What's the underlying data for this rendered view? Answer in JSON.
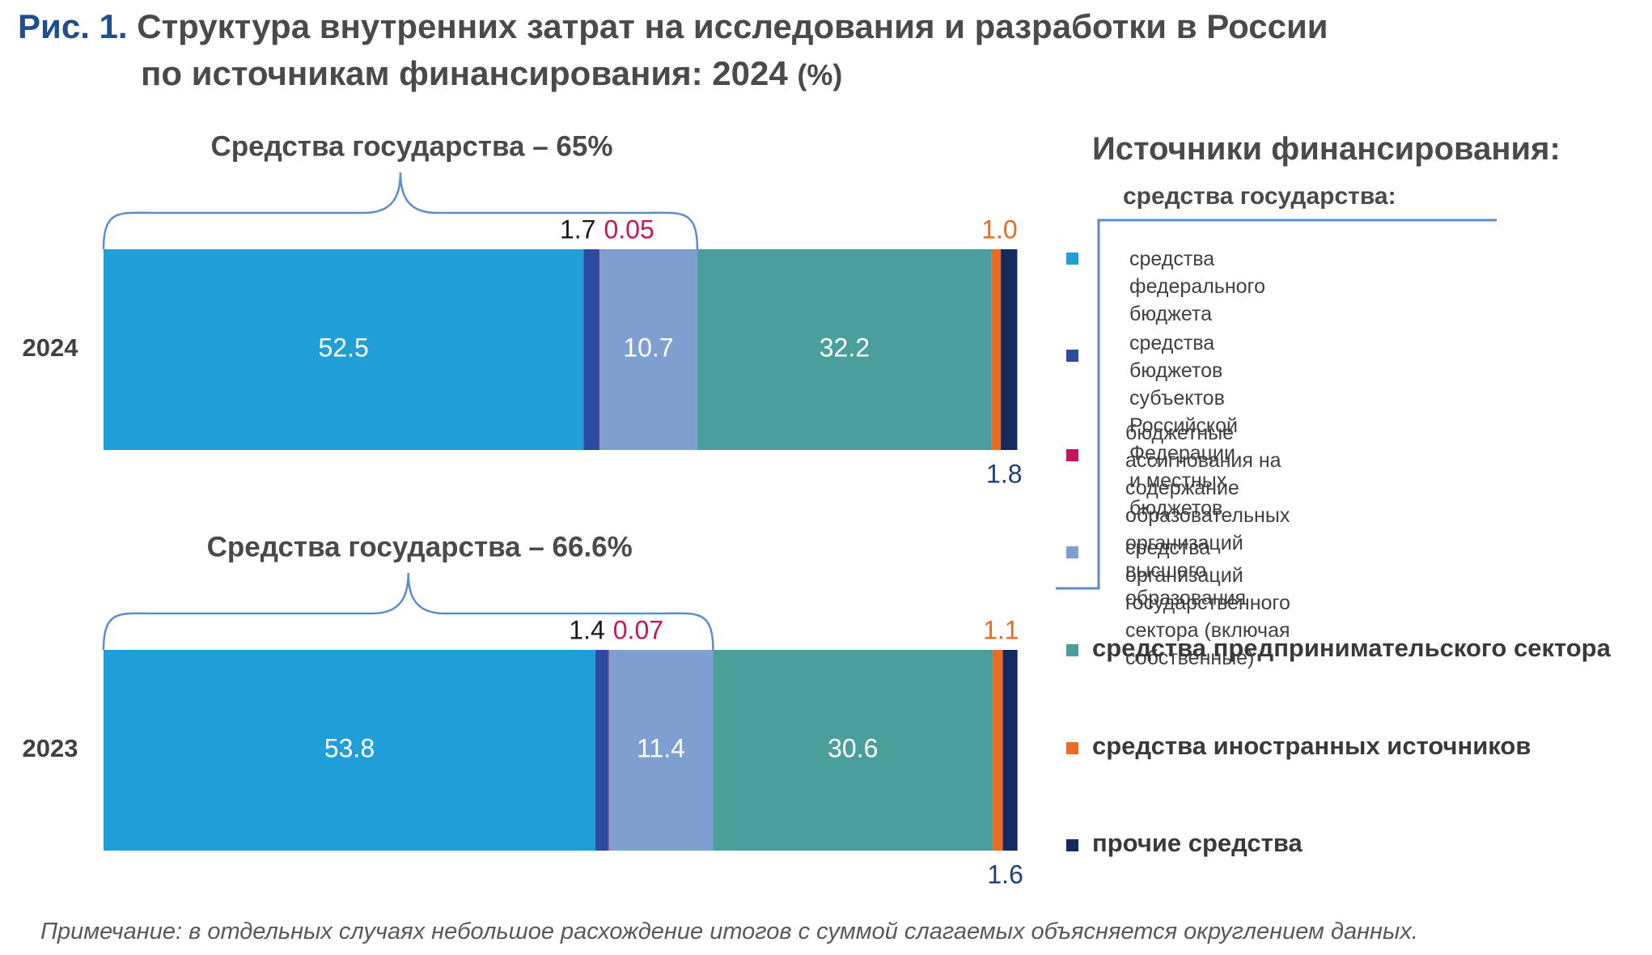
{
  "title": {
    "prefix": "Рис. 1.",
    "line1": "Структура внутренних затрат на исследования и разработки в России",
    "line2": "по источникам финансирования: 2024",
    "unit": "(%)"
  },
  "legend": {
    "heading": "Источники финансирования:",
    "subheading": "средства государства:",
    "items": [
      {
        "label": "средства федерального бюджета",
        "color": "#1f9ed8"
      },
      {
        "label": "средства бюджетов субъектов Российской\nФедерации и местных бюджетов",
        "color": "#2c4a9f"
      },
      {
        "label": "бюджетные ассигнования на содержание\nобразовательных организаций высшего\nобразования",
        "color": "#c2185b"
      },
      {
        "label": "средства организаций государственного\nсектора (включая собственные)",
        "color": "#7f9fd0"
      },
      {
        "label": "средства предпринимательского сектора",
        "color": "#4a9e9b"
      },
      {
        "label": "средства иностранных источников",
        "color": "#eb6a24"
      },
      {
        "label": "прочие средства",
        "color": "#13295f"
      }
    ]
  },
  "chart_data": {
    "type": "bar",
    "orientation": "horizontal",
    "stacked": true,
    "categories": [
      "2024",
      "2023"
    ],
    "series": [
      {
        "name": "средства федерального бюджета",
        "values": [
          52.5,
          53.8
        ]
      },
      {
        "name": "средства бюджетов субъектов Российской Федерации и местных бюджетов",
        "values": [
          1.7,
          1.4
        ]
      },
      {
        "name": "бюджетные ассигнования на содержание образовательных организаций высшего образования",
        "values": [
          0.05,
          0.07
        ]
      },
      {
        "name": "средства организаций государственного сектора (включая собственные)",
        "values": [
          10.7,
          11.4
        ]
      },
      {
        "name": "средства предпринимательского сектора",
        "values": [
          32.2,
          30.6
        ]
      },
      {
        "name": "средства иностранных источников",
        "values": [
          1.0,
          1.1
        ]
      },
      {
        "name": "прочие средства",
        "values": [
          1.8,
          1.6
        ]
      }
    ],
    "value_labels": [
      [
        "52.5",
        "1.7",
        "0.05",
        "10.7",
        "32.2",
        "1.0",
        "1.8"
      ],
      [
        "53.8",
        "1.4",
        "0.07",
        "11.4",
        "30.6",
        "1.1",
        "1.6"
      ]
    ],
    "group_brackets": [
      "Средства государства – 65%",
      "Средства государства – 66.6%"
    ],
    "colors": [
      "#1f9ed8",
      "#2c4a9f",
      "#c2185b",
      "#7f9fd0",
      "#4a9e9b",
      "#eb6a24",
      "#13295f"
    ],
    "label_colors": {
      "inner": "#ffffff",
      "dark": "#1a1a1a",
      "budgetary": "#c2185b",
      "foreign": "#eb6a24",
      "other": "#1f3f7a"
    },
    "bracket_color": "#5b8ec7",
    "legend_position": "right",
    "grid": false
  },
  "note": "Примечание: в отдельных случаях небольшое расхождение итогов с суммой слагаемых объясняется округлением данных."
}
